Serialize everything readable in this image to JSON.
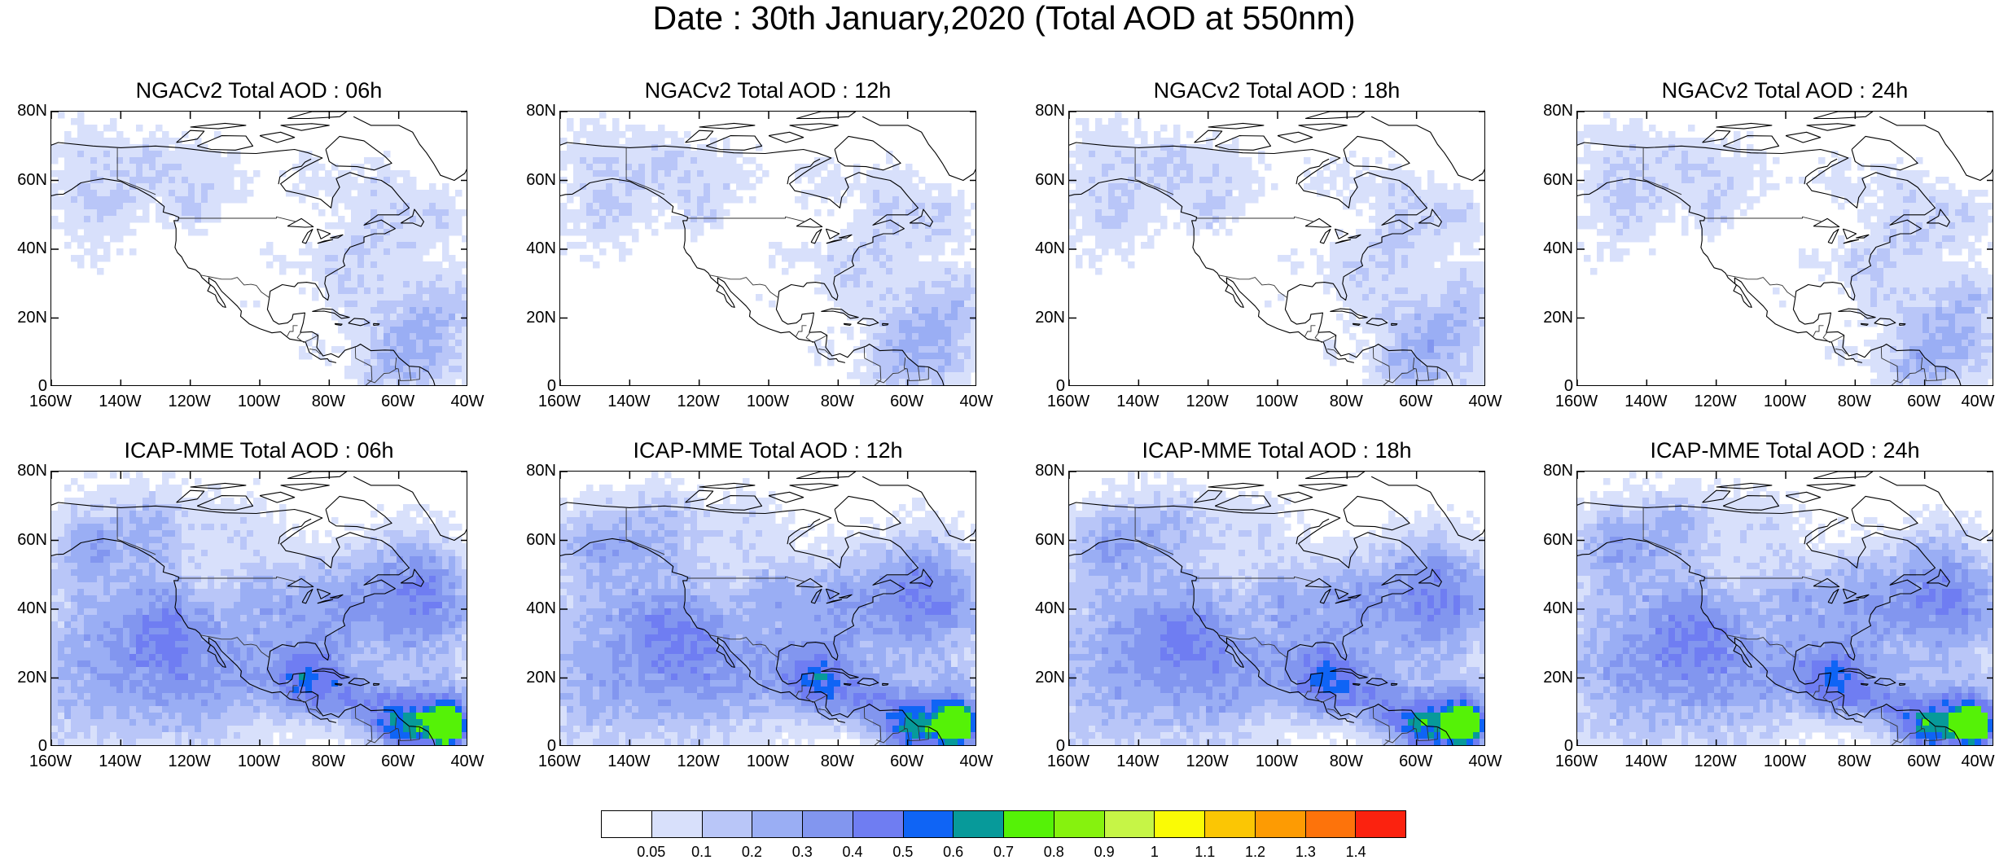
{
  "figure": {
    "title": "Date : 30th January,2020 (Total AOD at 550nm)"
  },
  "panels": [
    {
      "title": "NGACv2 Total AOD : 06h",
      "model": "NGACv2",
      "lead": "06h"
    },
    {
      "title": "NGACv2 Total AOD : 12h",
      "model": "NGACv2",
      "lead": "12h"
    },
    {
      "title": "NGACv2 Total AOD : 18h",
      "model": "NGACv2",
      "lead": "18h"
    },
    {
      "title": "NGACv2 Total AOD : 24h",
      "model": "NGACv2",
      "lead": "24h"
    },
    {
      "title": "ICAP-MME Total AOD : 06h",
      "model": "ICAP-MME",
      "lead": "06h"
    },
    {
      "title": "ICAP-MME Total AOD : 12h",
      "model": "ICAP-MME",
      "lead": "12h"
    },
    {
      "title": "ICAP-MME Total AOD : 18h",
      "model": "ICAP-MME",
      "lead": "18h"
    },
    {
      "title": "ICAP-MME Total AOD : 24h",
      "model": "ICAP-MME",
      "lead": "24h"
    }
  ],
  "axes": {
    "x_ticks": [
      "160W",
      "140W",
      "120W",
      "100W",
      "80W",
      "60W",
      "40W"
    ],
    "y_ticks": [
      "80N",
      "60N",
      "40N",
      "20N",
      "0"
    ],
    "lon_range": [
      -160,
      -40
    ],
    "lat_range": [
      0,
      80
    ]
  },
  "colorbar": {
    "labels": [
      "0.05",
      "0.1",
      "0.2",
      "0.3",
      "0.4",
      "0.5",
      "0.6",
      "0.7",
      "0.8",
      "0.9",
      "1",
      "1.1",
      "1.2",
      "1.3",
      "1.4"
    ],
    "colors": [
      "#ffffff",
      "#d8e0fb",
      "#b9c6f8",
      "#9aaef4",
      "#8296ef",
      "#6f7df2",
      "#0f64f5",
      "#079a9a",
      "#55f207",
      "#86f20e",
      "#c6f546",
      "#fafb05",
      "#fbc604",
      "#fd9b03",
      "#fd730b",
      "#fb220f"
    ]
  }
}
